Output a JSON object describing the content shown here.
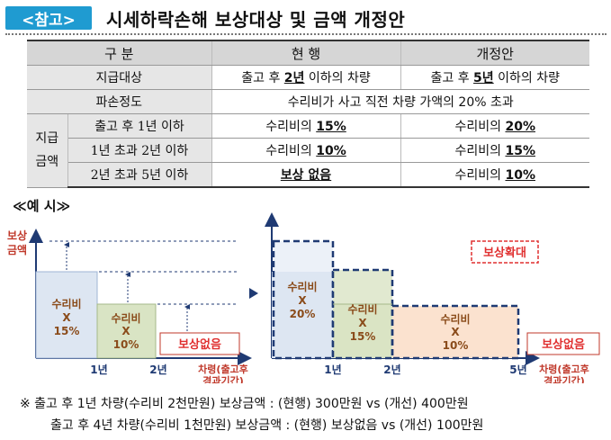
{
  "header": {
    "tag": "<참고>",
    "title": "시세하락손해 보상대상 및 금액 개정안"
  },
  "table": {
    "col_headers": [
      "구 분",
      "현 행",
      "개정안"
    ],
    "row1": {
      "label": "지급대상",
      "cur_pre": "출고 후 ",
      "cur_bold": "2년",
      "cur_post": " 이하의 차량",
      "new_pre": "출고 후 ",
      "new_bold": "5년",
      "new_post": " 이하의 차량"
    },
    "row2": {
      "label": "파손정도",
      "value": "수리비가 사고 직전 차량 가액의 20% 초과"
    },
    "group_label_1": "지급",
    "group_label_2": "금액",
    "row3": {
      "label": "출고 후 1년 이하",
      "cur_pre": "수리비의 ",
      "cur_bold": "15%",
      "new_pre": "수리비의 ",
      "new_bold": "20%"
    },
    "row4": {
      "label": "1년 초과 2년 이하",
      "cur_pre": "수리비의 ",
      "cur_bold": "10%",
      "new_pre": "수리비의 ",
      "new_bold": "15%"
    },
    "row5": {
      "label": "2년 초과 5년 이하",
      "cur_bold": "보상 없음",
      "new_pre": "수리비의 ",
      "new_bold": "10%"
    }
  },
  "example": {
    "label": "≪예 시≫"
  },
  "left_chart": {
    "ylabel_1": "보상",
    "ylabel_2": "금액",
    "bar1": {
      "l1": "수리비",
      "l2": "X",
      "l3": "15%"
    },
    "bar2": {
      "l1": "수리비",
      "l2": "X",
      "l3": "10%"
    },
    "none_label": "보상없음",
    "x1": "1년",
    "x2": "2년",
    "xlabel_1": "차령(출고후",
    "xlabel_2": "경과기간)"
  },
  "right_chart": {
    "legend": "보상확대",
    "bar1": {
      "l1": "수리비",
      "l2": "X",
      "l3": "20%"
    },
    "bar2": {
      "l1": "수리비",
      "l2": "X",
      "l3": "15%"
    },
    "bar3": {
      "l1": "수리비",
      "l2": "X",
      "l3": "10%"
    },
    "none_label": "보상없음",
    "x1": "1년",
    "x2": "2년",
    "x3": "5년",
    "xlabel_1": "차령(출고후",
    "xlabel_2": "경과기간)"
  },
  "notes": {
    "line1": "※  출고 후 1년 차량(수리비 2천만원) 보상금액 : (현행) 300만원 vs (개선) 400만원",
    "line2": "출고 후 4년 차량(수리비 1천만원) 보상금액 : (현행) 보상없음 vs (개선) 100만원"
  },
  "colors": {
    "tag": "#1f9bd1",
    "bar_blue": "#dde6f2",
    "bar_green": "#d9e4c4",
    "bar_orange": "#fbe2cf",
    "red": "#e03030",
    "navy": "#1f3a73"
  }
}
